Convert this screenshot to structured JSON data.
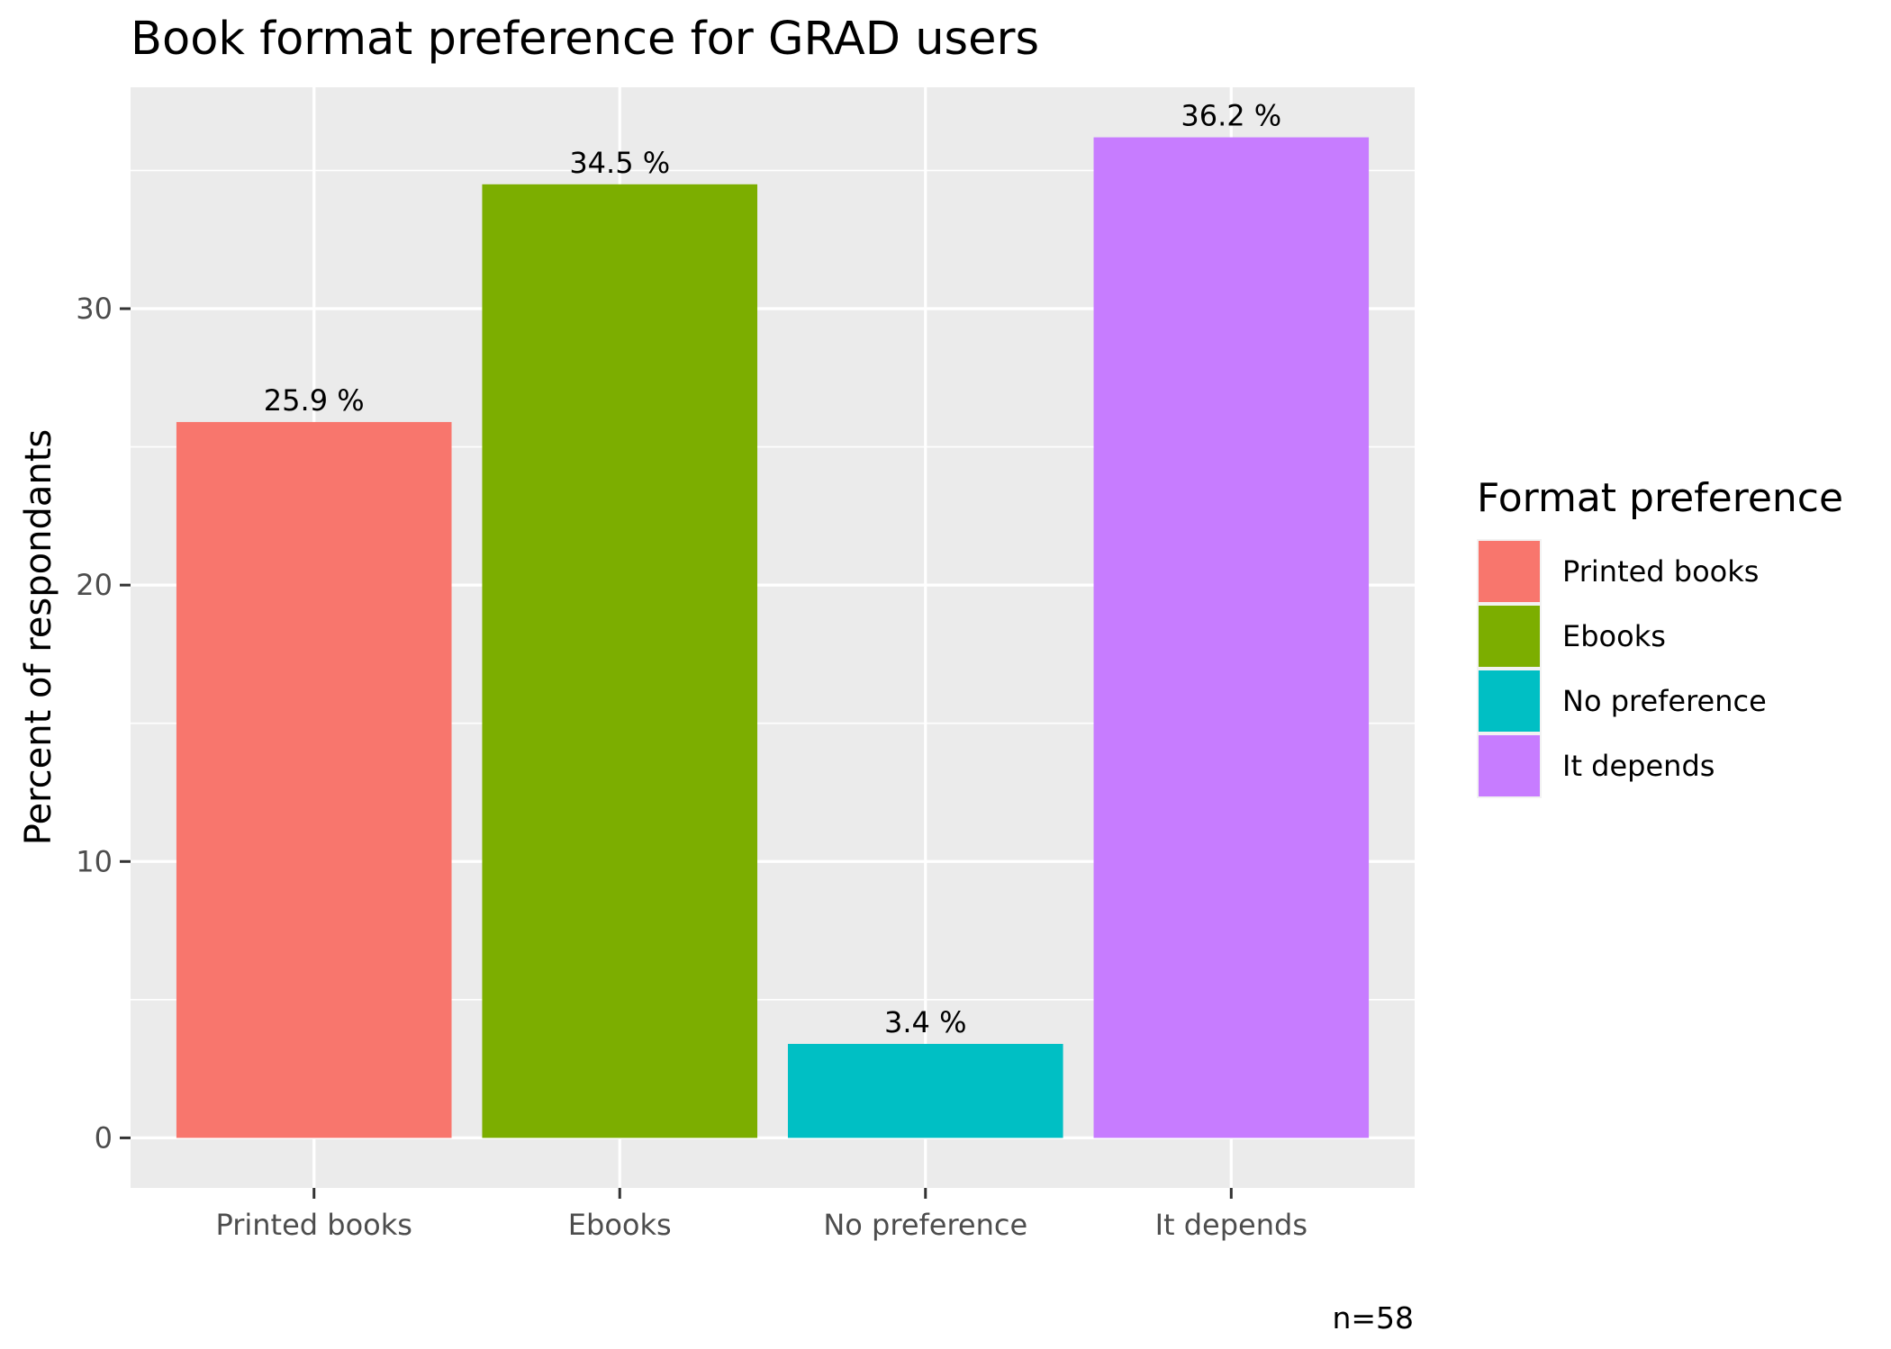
{
  "chart_data": {
    "type": "bar",
    "title": "Book format preference for GRAD users",
    "xlabel": "",
    "ylabel": "Percent of respondants",
    "categories": [
      "Printed books",
      "Ebooks",
      "No preference",
      "It depends"
    ],
    "values": [
      25.9,
      34.5,
      3.4,
      36.2
    ],
    "value_labels": [
      "25.9 %",
      "34.5 %",
      "3.4 %",
      "36.2 %"
    ],
    "colors": [
      "#F8766D",
      "#7CAE00",
      "#00BFC4",
      "#C77CFF"
    ],
    "y_ticks": [
      0,
      10,
      20,
      30
    ],
    "y_tick_labels": [
      "0",
      "10",
      "20",
      "30"
    ],
    "ylim": [
      -1.81,
      38.01
    ],
    "grid": true,
    "legend": {
      "title": "Format preference",
      "position": "right",
      "items": [
        "Printed books",
        "Ebooks",
        "No preference",
        "It depends"
      ]
    },
    "caption": "n=58"
  }
}
